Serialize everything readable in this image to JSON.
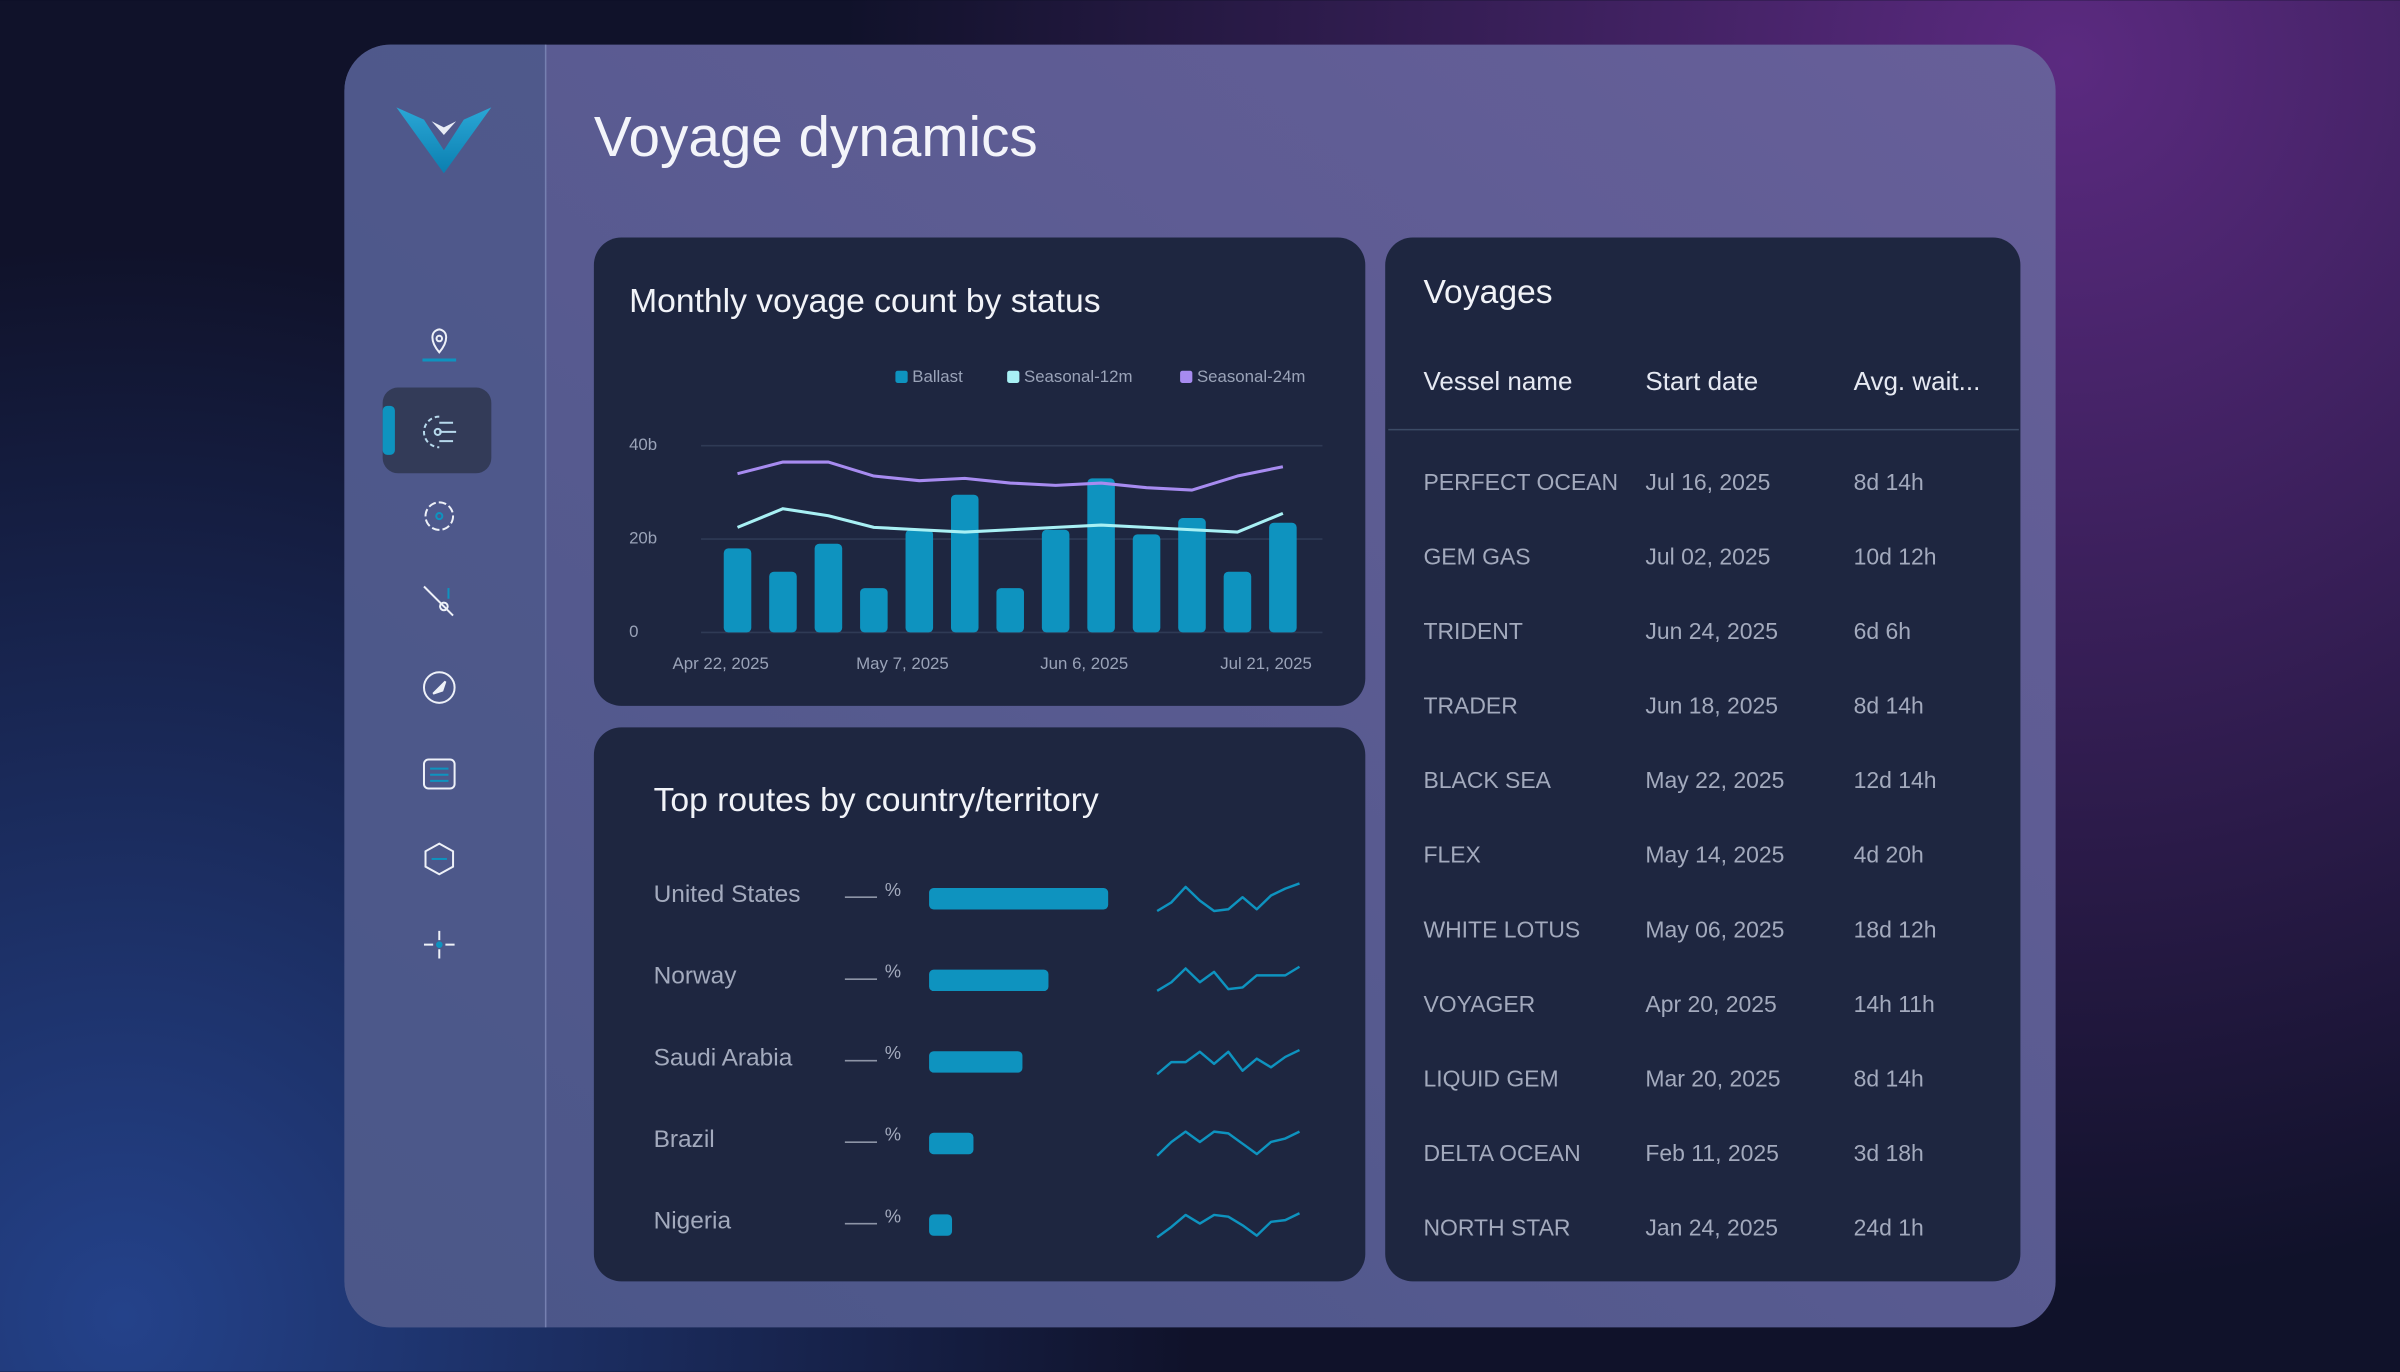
{
  "header": {
    "title": "Voyage dynamics"
  },
  "chart_data": [
    {
      "type": "bar",
      "title": "Monthly voyage count by status",
      "categories": [
        "Apr 22, 2025",
        null,
        null,
        null,
        "May 7, 2025",
        null,
        null,
        null,
        "Jun 6, 2025",
        null,
        null,
        null,
        "Jul 21, 2025"
      ],
      "series": [
        {
          "name": "Ballast",
          "type": "bar",
          "color": "#0e93bf",
          "values": [
            18,
            13,
            19,
            9.5,
            22,
            29.5,
            9.5,
            22,
            33,
            21,
            24.5,
            13,
            23.5
          ]
        },
        {
          "name": "Seasonal-12m",
          "type": "line",
          "color": "#a8f0f4",
          "values": [
            22.5,
            26.5,
            25,
            22.5,
            22,
            21.5,
            22,
            22.5,
            23,
            22.5,
            22,
            21.5,
            25.5
          ]
        },
        {
          "name": "Seasonal-24m",
          "type": "line",
          "color": "#a78bf0",
          "values": [
            34,
            36.5,
            36.5,
            33.5,
            32.5,
            33,
            32,
            31.5,
            32,
            31,
            30.5,
            33.5,
            35.5
          ]
        }
      ],
      "ylim": [
        0,
        40
      ],
      "yticks": [
        {
          "value": 40,
          "label": "40b"
        },
        {
          "value": 20,
          "label": "20b"
        },
        0
      ],
      "grid": true,
      "legend": "top-right"
    },
    {
      "type": "hbar",
      "title": "Top routes by country/territory",
      "categories": [
        "United States",
        "Norway",
        "Saudi Arabia",
        "Brazil",
        "Nigeria"
      ],
      "values": [
        117,
        78,
        61,
        29,
        15
      ],
      "change_labels": [
        "—",
        "—",
        "—",
        "—",
        "—"
      ],
      "unit": "%",
      "color": "#0e93bf",
      "trends": [
        [
          7,
          12,
          21,
          13,
          7,
          8,
          15,
          8,
          16,
          20,
          23
        ],
        [
          8,
          13,
          21,
          13,
          19,
          9,
          10,
          17,
          17,
          17,
          22
        ],
        [
          7,
          14,
          14,
          20,
          13,
          20,
          9,
          16,
          11,
          17,
          21
        ],
        [
          7,
          15,
          21,
          15,
          21,
          20,
          14,
          8,
          15,
          17,
          21
        ],
        [
          7,
          13,
          20,
          15,
          20,
          19,
          14,
          8,
          16,
          17,
          21
        ]
      ]
    }
  ],
  "table": {
    "title": "Voyages",
    "columns": [
      "Vessel name",
      "Start date",
      "Avg. wait..."
    ],
    "rows": [
      [
        "PERFECT OCEAN",
        "Jul 16, 2025",
        "8d 14h"
      ],
      [
        "GEM GAS",
        "Jul 02, 2025",
        "10d 12h"
      ],
      [
        "TRIDENT",
        "Jun 24, 2025",
        "6d 6h"
      ],
      [
        "TRADER",
        "Jun 18, 2025",
        "8d 14h"
      ],
      [
        "BLACK SEA",
        "May 22, 2025",
        "12d 14h"
      ],
      [
        "FLEX",
        "May 14, 2025",
        "4d 20h"
      ],
      [
        "WHITE LOTUS",
        "May 06, 2025",
        "18d 12h"
      ],
      [
        "VOYAGER",
        "Apr 20, 2025",
        "14h 11h"
      ],
      [
        "LIQUID GEM",
        "Mar 20, 2025",
        "8d 14h"
      ],
      [
        "DELTA OCEAN",
        "Feb 11, 2025",
        "3d 18h"
      ],
      [
        "NORTH STAR",
        "Jan 24, 2025",
        "24d 1h"
      ]
    ]
  }
}
